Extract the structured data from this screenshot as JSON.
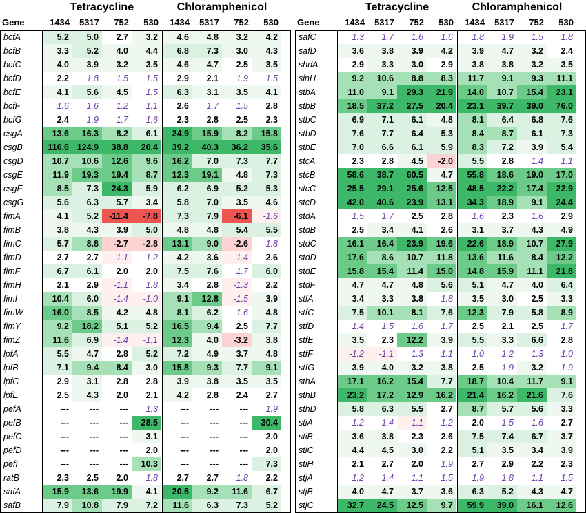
{
  "group_titles": [
    "Tetracycline",
    "Chloramphenicol"
  ],
  "gene_header": "Gene",
  "strains": [
    "1434",
    "5317",
    "752",
    "530"
  ],
  "colors": {
    "dark_green": "#3cb868",
    "med_green": "#6dcb8a",
    "light_green": "#a6e0b6",
    "pale_green": "#dbf1e1",
    "paler_green": "#eef8f0",
    "pale_red": "#fbd3d3",
    "red": "#ee5450",
    "purple_text": "#6b3fa8"
  },
  "left_panel": [
    {
      "gene": "bcfA",
      "t": [
        "5.2",
        "5.0",
        "2.7",
        "3.2"
      ],
      "c": [
        "4.6",
        "4.8",
        "3.2",
        "4.2"
      ]
    },
    {
      "gene": "bcfB",
      "t": [
        "3.3",
        "5.2",
        "4.0",
        "4.4"
      ],
      "c": [
        "6.8",
        "7.3",
        "3.0",
        "4.3"
      ]
    },
    {
      "gene": "bcfC",
      "t": [
        "4.0",
        "3.9",
        "3.2",
        "3.5"
      ],
      "c": [
        "4.6",
        "4.7",
        "2.5",
        "3.5"
      ]
    },
    {
      "gene": "bcfD",
      "t": [
        "2.2",
        "1.8",
        "1.5",
        "1.5"
      ],
      "c": [
        "2.9",
        "2.1",
        "1.9",
        "1.5"
      ]
    },
    {
      "gene": "bcfE",
      "t": [
        "4.1",
        "5.6",
        "4.5",
        "1.5"
      ],
      "c": [
        "6.3",
        "3.1",
        "3.5",
        "4.1"
      ]
    },
    {
      "gene": "bcfF",
      "t": [
        "1.6",
        "1.6",
        "1.2",
        "1.1"
      ],
      "c": [
        "2.6",
        "1.7",
        "1.5",
        "2.8"
      ]
    },
    {
      "gene": "bcfG",
      "t": [
        "2.4",
        "1.9",
        "1.7",
        "1.6"
      ],
      "c": [
        "2.3",
        "2.8",
        "2.5",
        "2.3"
      ]
    },
    {
      "gene": "csgA",
      "t": [
        "13.6",
        "16.3",
        "8.2",
        "6.1"
      ],
      "c": [
        "24.9",
        "15.9",
        "8.2",
        "15.8"
      ]
    },
    {
      "gene": "csgB",
      "t": [
        "116.6",
        "124.9",
        "38.8",
        "20.4"
      ],
      "c": [
        "39.2",
        "40.3",
        "36.2",
        "35.6"
      ]
    },
    {
      "gene": "csgD",
      "t": [
        "10.7",
        "10.6",
        "12.6",
        "9.6"
      ],
      "c": [
        "16.2",
        "7.0",
        "7.3",
        "7.7"
      ]
    },
    {
      "gene": "csgE",
      "t": [
        "11.9",
        "19.3",
        "19.4",
        "8.7"
      ],
      "c": [
        "12.3",
        "19.1",
        "4.8",
        "7.3"
      ]
    },
    {
      "gene": "csgF",
      "t": [
        "8.5",
        "7.3",
        "24.3",
        "5.9"
      ],
      "c": [
        "6.2",
        "6.9",
        "5.2",
        "5.3"
      ]
    },
    {
      "gene": "csgG",
      "t": [
        "5.6",
        "6.3",
        "5.7",
        "3.4"
      ],
      "c": [
        "5.8",
        "7.0",
        "3.5",
        "4.6"
      ]
    },
    {
      "gene": "fimA",
      "t": [
        "4.1",
        "5.2",
        "-11.4",
        "-7.8"
      ],
      "c": [
        "7.3",
        "7.9",
        "-6.1",
        "-1.6"
      ]
    },
    {
      "gene": "fimB",
      "t": [
        "3.8",
        "4.3",
        "3.9",
        "5.0"
      ],
      "c": [
        "4.8",
        "4.8",
        "5.4",
        "5.5"
      ]
    },
    {
      "gene": "fimC",
      "t": [
        "5.7",
        "8.8",
        "-2.7",
        "-2.8"
      ],
      "c": [
        "13.1",
        "9.0",
        "-2.6",
        "1.8"
      ]
    },
    {
      "gene": "fimD",
      "t": [
        "2.7",
        "2.7",
        "-1.1",
        "1.2"
      ],
      "c": [
        "4.2",
        "3.6",
        "-1.4",
        "2.6"
      ]
    },
    {
      "gene": "fimF",
      "t": [
        "6.7",
        "6.1",
        "2.0",
        "2.0"
      ],
      "c": [
        "7.5",
        "7.6",
        "1.7",
        "6.0"
      ]
    },
    {
      "gene": "fimH",
      "t": [
        "2.1",
        "2.9",
        "-1.1",
        "1.8"
      ],
      "c": [
        "3.4",
        "2.8",
        "-1.3",
        "2.2"
      ]
    },
    {
      "gene": "fimI",
      "t": [
        "10.4",
        "6.0",
        "-1.4",
        "-1.0"
      ],
      "c": [
        "9.1",
        "12.8",
        "-1.5",
        "3.9"
      ]
    },
    {
      "gene": "fimW",
      "t": [
        "16.0",
        "8.5",
        "4.2",
        "4.8"
      ],
      "c": [
        "8.1",
        "6.2",
        "1.6",
        "4.8"
      ]
    },
    {
      "gene": "fimY",
      "t": [
        "9.2",
        "18.2",
        "5.1",
        "5.2"
      ],
      "c": [
        "16.5",
        "9.4",
        "2.5",
        "7.7"
      ]
    },
    {
      "gene": "fimZ",
      "t": [
        "11.6",
        "6.9",
        "-1.4",
        "-1.1"
      ],
      "c": [
        "12.3",
        "4.0",
        "-3.2",
        "3.8"
      ]
    },
    {
      "gene": "lpfA",
      "t": [
        "5.5",
        "4.7",
        "2.8",
        "5.2"
      ],
      "c": [
        "7.2",
        "4.9",
        "3.7",
        "4.8"
      ]
    },
    {
      "gene": "lpfB",
      "t": [
        "7.1",
        "9.4",
        "8.4",
        "3.0"
      ],
      "c": [
        "15.8",
        "9.3",
        "7.7",
        "9.1"
      ]
    },
    {
      "gene": "lpfC",
      "t": [
        "2.9",
        "3.1",
        "2.8",
        "2.8"
      ],
      "c": [
        "3.9",
        "3.8",
        "3.5",
        "3.5"
      ]
    },
    {
      "gene": "lpfE",
      "t": [
        "2.5",
        "4.3",
        "2.0",
        "2.1"
      ],
      "c": [
        "4.2",
        "2.8",
        "2.4",
        "2.7"
      ]
    },
    {
      "gene": "pefA",
      "t": [
        "---",
        "---",
        "---",
        "1.3"
      ],
      "c": [
        "---",
        "---",
        "---",
        "1.9"
      ]
    },
    {
      "gene": "pefB",
      "t": [
        "---",
        "---",
        "---",
        "28.5"
      ],
      "c": [
        "---",
        "---",
        "---",
        "30.4"
      ]
    },
    {
      "gene": "pefC",
      "t": [
        "---",
        "---",
        "---",
        "3.1"
      ],
      "c": [
        "---",
        "---",
        "---",
        "2.0"
      ]
    },
    {
      "gene": "pefD",
      "t": [
        "---",
        "---",
        "---",
        "2.0"
      ],
      "c": [
        "---",
        "---",
        "---",
        "2.0"
      ]
    },
    {
      "gene": "pefI",
      "t": [
        "---",
        "---",
        "---",
        "10.3"
      ],
      "c": [
        "---",
        "---",
        "---",
        "7.3"
      ]
    },
    {
      "gene": "ratB",
      "t": [
        "2.3",
        "2.5",
        "2.0",
        "1.8"
      ],
      "c": [
        "2.7",
        "2.7",
        "1.8",
        "2.2"
      ]
    },
    {
      "gene": "safA",
      "t": [
        "15.9",
        "13.6",
        "19.9",
        "4.1"
      ],
      "c": [
        "20.5",
        "9.2",
        "11.6",
        "6.7"
      ]
    },
    {
      "gene": "safB",
      "t": [
        "7.9",
        "10.8",
        "7.9",
        "7.2"
      ],
      "c": [
        "11.6",
        "6.3",
        "7.3",
        "5.2"
      ]
    }
  ],
  "right_panel": [
    {
      "gene": "safC",
      "t": [
        "1.3",
        "1.7",
        "1.6",
        "1.6"
      ],
      "c": [
        "1.8",
        "1.9",
        "1.5",
        "1.8"
      ]
    },
    {
      "gene": "safD",
      "t": [
        "3.6",
        "3.8",
        "3.9",
        "4.2"
      ],
      "c": [
        "3.9",
        "4.7",
        "3.2",
        "2.4"
      ]
    },
    {
      "gene": "shdA",
      "t": [
        "2.9",
        "3.3",
        "3.0",
        "2.9"
      ],
      "c": [
        "3.8",
        "3.8",
        "3.2",
        "3.5"
      ]
    },
    {
      "gene": "sinH",
      "t": [
        "9.2",
        "10.6",
        "8.8",
        "8.3"
      ],
      "c": [
        "11.7",
        "9.1",
        "9.3",
        "11.1"
      ]
    },
    {
      "gene": "stbA",
      "t": [
        "11.0",
        "9.1",
        "29.3",
        "21.9"
      ],
      "c": [
        "14.0",
        "10.7",
        "15.4",
        "23.1"
      ]
    },
    {
      "gene": "stbB",
      "t": [
        "18.5",
        "37.2",
        "27.5",
        "20.4"
      ],
      "c": [
        "23.1",
        "39.7",
        "39.0",
        "76.0"
      ]
    },
    {
      "gene": "stbC",
      "t": [
        "6.9",
        "7.1",
        "6.1",
        "4.8"
      ],
      "c": [
        "8.1",
        "6.4",
        "6.8",
        "7.6"
      ]
    },
    {
      "gene": "stbD",
      "t": [
        "7.6",
        "7.7",
        "6.4",
        "5.3"
      ],
      "c": [
        "8.4",
        "8.7",
        "6.1",
        "7.3"
      ]
    },
    {
      "gene": "stbE",
      "t": [
        "7.0",
        "6.6",
        "6.1",
        "5.9"
      ],
      "c": [
        "8.3",
        "7.2",
        "3.9",
        "5.4"
      ]
    },
    {
      "gene": "stcA",
      "t": [
        "2.3",
        "2.8",
        "4.5",
        "-2.0"
      ],
      "c": [
        "5.5",
        "2.8",
        "1.4",
        "1.1"
      ]
    },
    {
      "gene": "stcB",
      "t": [
        "58.6",
        "38.7",
        "60.5",
        "4.7"
      ],
      "c": [
        "55.8",
        "18.6",
        "19.0",
        "17.0"
      ]
    },
    {
      "gene": "stcC",
      "t": [
        "25.5",
        "29.1",
        "25.6",
        "12.5"
      ],
      "c": [
        "48.5",
        "22.2",
        "17.4",
        "22.9"
      ]
    },
    {
      "gene": "stcD",
      "t": [
        "42.0",
        "40.6",
        "23.9",
        "13.1"
      ],
      "c": [
        "34.3",
        "18.9",
        "9.1",
        "24.4"
      ]
    },
    {
      "gene": "stdA",
      "t": [
        "1.5",
        "1.7",
        "2.5",
        "2.8"
      ],
      "c": [
        "1.6",
        "2.3",
        "1.6",
        "2.9"
      ]
    },
    {
      "gene": "stdB",
      "t": [
        "2.5",
        "3.4",
        "4.1",
        "2.6"
      ],
      "c": [
        "3.1",
        "3.7",
        "4.3",
        "4.9"
      ]
    },
    {
      "gene": "stdC",
      "t": [
        "16.1",
        "16.4",
        "23.9",
        "19.6"
      ],
      "c": [
        "22.6",
        "18.9",
        "10.7",
        "27.9"
      ]
    },
    {
      "gene": "stdD",
      "t": [
        "17.6",
        "8.6",
        "10.7",
        "11.8"
      ],
      "c": [
        "13.6",
        "11.6",
        "8.4",
        "12.2"
      ]
    },
    {
      "gene": "stdE",
      "t": [
        "15.8",
        "15.4",
        "11.4",
        "15.0"
      ],
      "c": [
        "14.8",
        "15.9",
        "11.1",
        "21.8"
      ]
    },
    {
      "gene": "stdF",
      "t": [
        "4.7",
        "4.7",
        "4.8",
        "5.6"
      ],
      "c": [
        "5.1",
        "4.7",
        "4.0",
        "6.4"
      ]
    },
    {
      "gene": "stfA",
      "t": [
        "3.4",
        "3.3",
        "3.8",
        "1.8"
      ],
      "c": [
        "3.5",
        "3.0",
        "2.5",
        "3.3"
      ]
    },
    {
      "gene": "stfC",
      "t": [
        "7.5",
        "10.1",
        "8.1",
        "7.6"
      ],
      "c": [
        "12.3",
        "7.9",
        "5.8",
        "8.9"
      ]
    },
    {
      "gene": "stfD",
      "t": [
        "1.4",
        "1.5",
        "1.6",
        "1.7"
      ],
      "c": [
        "2.5",
        "2.1",
        "2.5",
        "1.7"
      ]
    },
    {
      "gene": "stfE",
      "t": [
        "3.5",
        "2.3",
        "12.2",
        "3.9"
      ],
      "c": [
        "5.5",
        "3.3",
        "6.6",
        "2.8"
      ]
    },
    {
      "gene": "stfF",
      "t": [
        "-1.2",
        "-1.1",
        "1.3",
        "1.1"
      ],
      "c": [
        "1.0",
        "1.2",
        "1.3",
        "1.0"
      ]
    },
    {
      "gene": "stfG",
      "t": [
        "3.9",
        "4.0",
        "3.2",
        "3.8"
      ],
      "c": [
        "2.5",
        "1.9",
        "3.2",
        "1.9"
      ]
    },
    {
      "gene": "sthA",
      "t": [
        "17.1",
        "16.2",
        "15.4",
        "7.7"
      ],
      "c": [
        "18.7",
        "10.4",
        "11.7",
        "9.1"
      ]
    },
    {
      "gene": "sthB",
      "t": [
        "23.2",
        "17.2",
        "12.9",
        "16.2"
      ],
      "c": [
        "21.4",
        "16.2",
        "21.6",
        "7.6"
      ]
    },
    {
      "gene": "sthD",
      "t": [
        "5.8",
        "6.3",
        "5.5",
        "2.7"
      ],
      "c": [
        "8.7",
        "5.7",
        "5.6",
        "3.3"
      ]
    },
    {
      "gene": "stiA",
      "t": [
        "1.2",
        "1.4",
        "-1.1",
        "1.2"
      ],
      "c": [
        "2.0",
        "1.5",
        "1.6",
        "2.7"
      ]
    },
    {
      "gene": "stiB",
      "t": [
        "3.6",
        "3.8",
        "2.3",
        "2.6"
      ],
      "c": [
        "7.5",
        "7.4",
        "6.7",
        "3.7"
      ]
    },
    {
      "gene": "stiC",
      "t": [
        "4.4",
        "4.5",
        "3.0",
        "2.2"
      ],
      "c": [
        "5.1",
        "3.5",
        "3.4",
        "3.9"
      ]
    },
    {
      "gene": "stiH",
      "t": [
        "2.1",
        "2.7",
        "2.0",
        "1.9"
      ],
      "c": [
        "2.7",
        "2.9",
        "2.2",
        "2.3"
      ]
    },
    {
      "gene": "stjA",
      "t": [
        "1.2",
        "1.4",
        "1.1",
        "1.5"
      ],
      "c": [
        "1.9",
        "1.8",
        "1.1",
        "1.5"
      ]
    },
    {
      "gene": "stjB",
      "t": [
        "4.0",
        "4.7",
        "3.7",
        "3.6"
      ],
      "c": [
        "6.3",
        "5.2",
        "4.3",
        "4.7"
      ]
    },
    {
      "gene": "stjC",
      "t": [
        "32.7",
        "24.5",
        "12.5",
        "9.7"
      ],
      "c": [
        "59.9",
        "39.0",
        "16.1",
        "12.6"
      ]
    }
  ]
}
